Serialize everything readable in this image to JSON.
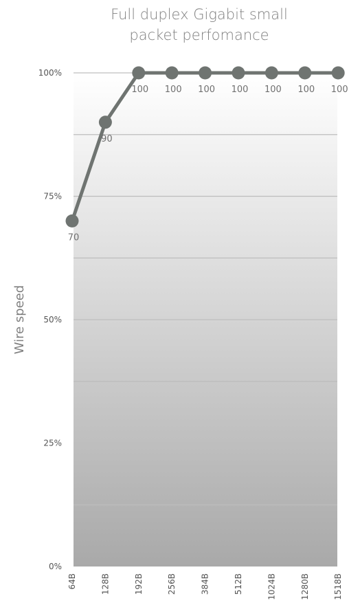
{
  "chart_data": {
    "type": "line",
    "title_lines": [
      "Full duplex Gigabit small",
      "packet perfomance"
    ],
    "ylabel": "Wire speed",
    "xlabel": "",
    "categories": [
      "64B",
      "128B",
      "192B",
      "256B",
      "384B",
      "512B",
      "1024B",
      "1280B",
      "1518B"
    ],
    "series": [
      {
        "values": [
          70,
          90,
          100,
          100,
          100,
          100,
          100,
          100,
          100
        ]
      }
    ],
    "data_labels": [
      "70",
      "90",
      "100",
      "100",
      "100",
      "100",
      "100",
      "100",
      "100"
    ],
    "ylim": [
      0,
      100
    ],
    "yticks": [
      0,
      25,
      50,
      75,
      100
    ],
    "ytick_labels": [
      "0%",
      "25%",
      "50%",
      "75%",
      "100%"
    ],
    "grid": true,
    "colors": {
      "line": "#6f7471",
      "grid": "#bdbdbd",
      "bg_top": "#ffffff",
      "bg_bottom": "#a9a9a9"
    }
  }
}
